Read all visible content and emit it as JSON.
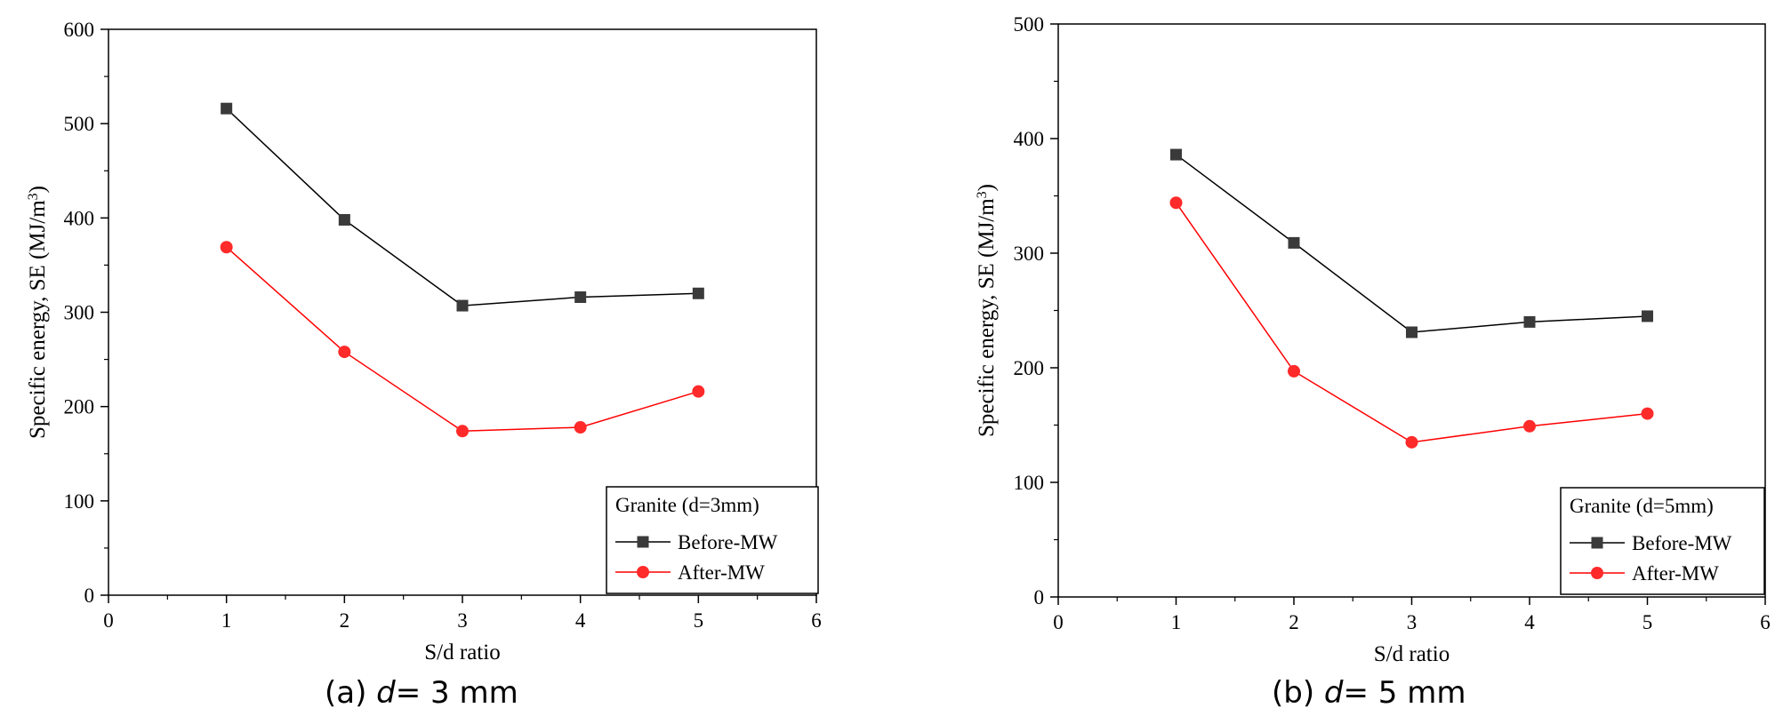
{
  "chart_data": [
    {
      "type": "line",
      "caption": {
        "prefix": "(a) ",
        "var": "d",
        "suffix": "= 3 mm"
      },
      "xlabel": "S/d ratio",
      "ylabel": {
        "main": "Specific energy, SE (MJ/m",
        "sup": "3",
        "close": ")"
      },
      "xlim": [
        0,
        6
      ],
      "ylim": [
        0,
        600
      ],
      "xticks": [
        0,
        1,
        2,
        3,
        4,
        5,
        6
      ],
      "yticks": [
        0,
        100,
        200,
        300,
        400,
        500,
        600
      ],
      "legend": {
        "title": "Granite (d=3mm)",
        "position": "bottom-right"
      },
      "series": [
        {
          "name": "Before-MW",
          "marker": "square",
          "color": "#000000",
          "marker_color": "#3a3a3a",
          "x": [
            1,
            2,
            3,
            4,
            5
          ],
          "y": [
            516,
            398,
            307,
            316,
            320
          ]
        },
        {
          "name": "After-MW",
          "marker": "circle",
          "color": "#ff0000",
          "marker_color": "#ff2a2a",
          "x": [
            1,
            2,
            3,
            4,
            5
          ],
          "y": [
            369,
            258,
            174,
            178,
            216
          ]
        }
      ]
    },
    {
      "type": "line",
      "caption": {
        "prefix": "(b) ",
        "var": "d",
        "suffix": "= 5 mm"
      },
      "xlabel": "S/d ratio",
      "ylabel": {
        "main": "Specific energy, SE (MJ/m",
        "sup": "3",
        "close": ")"
      },
      "xlim": [
        0,
        6
      ],
      "ylim": [
        0,
        500
      ],
      "xticks": [
        0,
        1,
        2,
        3,
        4,
        5,
        6
      ],
      "yticks": [
        0,
        100,
        200,
        300,
        400,
        500
      ],
      "legend": {
        "title": "Granite (d=5mm)",
        "position": "bottom-right"
      },
      "series": [
        {
          "name": "Before-MW",
          "marker": "square",
          "color": "#000000",
          "marker_color": "#3a3a3a",
          "x": [
            1,
            2,
            3,
            4,
            5
          ],
          "y": [
            386,
            309,
            231,
            240,
            245
          ]
        },
        {
          "name": "After-MW",
          "marker": "circle",
          "color": "#ff0000",
          "marker_color": "#ff2a2a",
          "x": [
            1,
            2,
            3,
            4,
            5
          ],
          "y": [
            344,
            197,
            135,
            149,
            160
          ]
        }
      ]
    }
  ]
}
